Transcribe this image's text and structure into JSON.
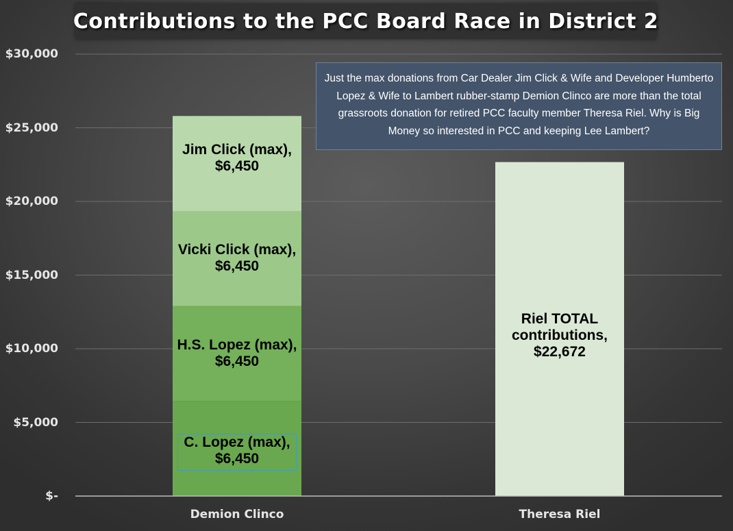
{
  "chart_data": {
    "type": "bar",
    "title": "Contributions to the PCC Board Race in District 2",
    "xlabel": "",
    "ylabel": "",
    "ylim": [
      0,
      30000
    ],
    "yticks": [
      {
        "value": 0,
        "label": "$-"
      },
      {
        "value": 5000,
        "label": "$5,000"
      },
      {
        "value": 10000,
        "label": "$10,000"
      },
      {
        "value": 15000,
        "label": "$15,000"
      },
      {
        "value": 20000,
        "label": "$20,000"
      },
      {
        "value": 25000,
        "label": "$25,000"
      },
      {
        "value": 30000,
        "label": "$30,000"
      }
    ],
    "grid": true,
    "categories": [
      "Demion Clinco",
      "Theresa Riel"
    ],
    "bars": [
      {
        "category": "Demion Clinco",
        "stacked": true,
        "segments": [
          {
            "name": "C. Lopez (max)",
            "value": 6450,
            "label_line1": "C. Lopez (max),",
            "label_line2": "$6,450",
            "color": "#6aa84f"
          },
          {
            "name": "H.S. Lopez (max)",
            "value": 6450,
            "label_line1": "H.S. Lopez (max),",
            "label_line2": "$6,450",
            "color": "#74b15a"
          },
          {
            "name": "Vicki Click (max)",
            "value": 6450,
            "label_line1": "Vicki Click (max),",
            "label_line2": "$6,450",
            "color": "#9cc98a"
          },
          {
            "name": "Jim Click (max)",
            "value": 6450,
            "label_line1": "Jim Click (max),",
            "label_line2": "$6,450",
            "color": "#b4d6a6"
          }
        ],
        "top_value": 25800
      },
      {
        "category": "Theresa Riel",
        "stacked": false,
        "value": 22672,
        "label_line1": "Riel TOTAL",
        "label_line2": "contributions,",
        "label_line3": "$22,672",
        "color": "#dbe8d6"
      }
    ],
    "annotation": "Just the max donations from Car Dealer Jim Click & Wife and Developer Humberto Lopez & Wife to Lambert rubber-stamp Demion Clinco are more than the total grassroots donation for retired PCC faculty member Theresa Riel. Why is Big Money so interested in PCC and keeping Lee Lambert?"
  }
}
